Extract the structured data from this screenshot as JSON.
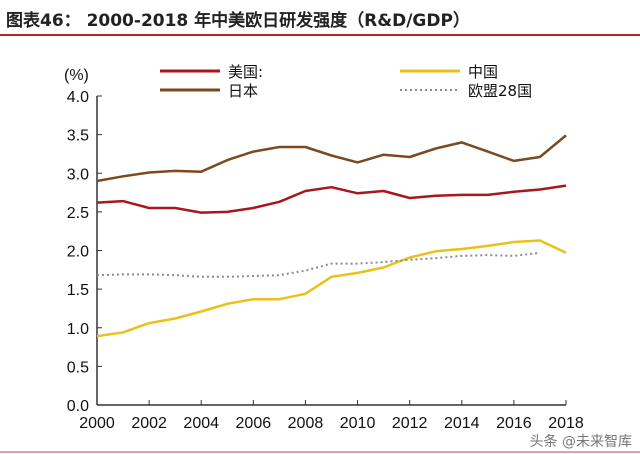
{
  "title": "图表46：   2000-2018 年中美欧日研发强度（R&D/GDP）",
  "watermark": "头条 @未来智库",
  "chart_data": {
    "type": "line",
    "title": "图表46：   2000-2018 年中美欧日研发强度（R&D/GDP）",
    "ylabel": "(%)",
    "xlabel": "",
    "xlim": [
      2000,
      2018
    ],
    "ylim": [
      0.0,
      4.0
    ],
    "x_ticks": [
      "2000",
      "2002",
      "2004",
      "2006",
      "2008",
      "2010",
      "2012",
      "2014",
      "2016",
      "2018"
    ],
    "y_ticks": [
      "0.0",
      "0.5",
      "1.0",
      "1.5",
      "2.0",
      "2.5",
      "3.0",
      "3.5",
      "4.0"
    ],
    "grid": false,
    "legend_position": "top",
    "x": [
      2000,
      2001,
      2002,
      2003,
      2004,
      2005,
      2006,
      2007,
      2008,
      2009,
      2010,
      2011,
      2012,
      2013,
      2014,
      2015,
      2016,
      2017,
      2018
    ],
    "series": [
      {
        "name": "美国:",
        "color": "#a8171f",
        "style": "solid",
        "values": [
          2.62,
          2.64,
          2.55,
          2.55,
          2.49,
          2.5,
          2.55,
          2.63,
          2.77,
          2.82,
          2.74,
          2.77,
          2.68,
          2.71,
          2.72,
          2.72,
          2.76,
          2.79,
          2.84
        ]
      },
      {
        "name": "中国",
        "color": "#e8c21a",
        "style": "solid",
        "values": [
          0.89,
          0.94,
          1.06,
          1.12,
          1.21,
          1.31,
          1.37,
          1.37,
          1.44,
          1.66,
          1.71,
          1.78,
          1.91,
          1.99,
          2.02,
          2.06,
          2.11,
          2.13,
          1.97
        ]
      },
      {
        "name": "日本",
        "color": "#7a4a22",
        "style": "solid",
        "values": [
          2.9,
          2.96,
          3.01,
          3.03,
          3.02,
          3.17,
          3.28,
          3.34,
          3.34,
          3.23,
          3.14,
          3.24,
          3.21,
          3.32,
          3.4,
          3.28,
          3.16,
          3.21,
          3.49
        ]
      },
      {
        "name": "欧盟28国",
        "color": "#8a8a9a",
        "style": "dotted",
        "values": [
          1.68,
          1.69,
          1.69,
          1.68,
          1.66,
          1.66,
          1.67,
          1.68,
          1.74,
          1.83,
          1.83,
          1.85,
          1.88,
          1.9,
          1.93,
          1.94,
          1.93,
          1.97,
          null
        ]
      }
    ]
  }
}
